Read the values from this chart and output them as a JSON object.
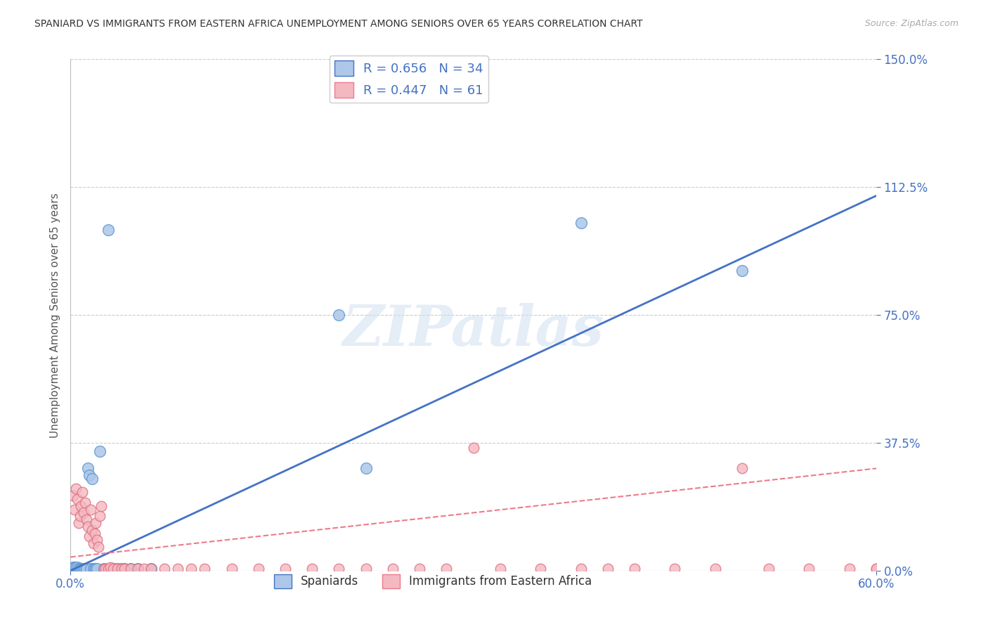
{
  "title": "SPANIARD VS IMMIGRANTS FROM EASTERN AFRICA UNEMPLOYMENT AMONG SENIORS OVER 65 YEARS CORRELATION CHART",
  "source": "Source: ZipAtlas.com",
  "ylabel": "Unemployment Among Seniors over 65 years",
  "xlim": [
    0.0,
    0.6
  ],
  "ylim": [
    0.0,
    1.5
  ],
  "ytick_values": [
    0.0,
    0.375,
    0.75,
    1.125,
    1.5
  ],
  "ytick_labels": [
    "0.0%",
    "37.5%",
    "75.0%",
    "112.5%",
    "150.0%"
  ],
  "xtick_values": [
    0.0,
    0.6
  ],
  "xtick_labels": [
    "0.0%",
    "60.0%"
  ],
  "background_color": "#ffffff",
  "watermark": "ZIPatlas",
  "legend_box_color_blue": "#aec6e8",
  "legend_box_color_pink": "#f4b8c1",
  "legend_line_color_blue": "#4472c4",
  "legend_line_color_pink": "#ee7a8a",
  "R_blue": 0.656,
  "N_blue": 34,
  "R_pink": 0.447,
  "N_pink": 61,
  "blue_scatter_x": [
    0.002,
    0.003,
    0.004,
    0.005,
    0.006,
    0.007,
    0.008,
    0.009,
    0.01,
    0.011,
    0.012,
    0.013,
    0.014,
    0.015,
    0.016,
    0.017,
    0.018,
    0.019,
    0.02,
    0.022,
    0.025,
    0.028,
    0.03,
    0.032,
    0.035,
    0.038,
    0.04,
    0.045,
    0.05,
    0.06,
    0.2,
    0.22,
    0.38,
    0.5
  ],
  "blue_scatter_y": [
    0.01,
    0.01,
    0.01,
    0.01,
    0.005,
    0.005,
    0.005,
    0.005,
    0.005,
    0.005,
    0.005,
    0.3,
    0.28,
    0.005,
    0.27,
    0.005,
    0.005,
    0.005,
    0.005,
    0.35,
    0.005,
    1.0,
    0.005,
    0.005,
    0.005,
    0.005,
    0.005,
    0.005,
    0.005,
    0.005,
    0.75,
    0.3,
    1.02,
    0.88
  ],
  "pink_scatter_x": [
    0.002,
    0.003,
    0.004,
    0.005,
    0.006,
    0.007,
    0.008,
    0.009,
    0.01,
    0.011,
    0.012,
    0.013,
    0.014,
    0.015,
    0.016,
    0.017,
    0.018,
    0.019,
    0.02,
    0.021,
    0.022,
    0.023,
    0.025,
    0.026,
    0.028,
    0.03,
    0.032,
    0.035,
    0.038,
    0.04,
    0.045,
    0.05,
    0.055,
    0.06,
    0.07,
    0.08,
    0.09,
    0.1,
    0.12,
    0.14,
    0.16,
    0.18,
    0.2,
    0.22,
    0.24,
    0.26,
    0.28,
    0.3,
    0.32,
    0.35,
    0.38,
    0.4,
    0.42,
    0.45,
    0.48,
    0.5,
    0.52,
    0.55,
    0.58,
    0.6,
    0.6
  ],
  "pink_scatter_y": [
    0.22,
    0.18,
    0.24,
    0.21,
    0.14,
    0.16,
    0.19,
    0.23,
    0.17,
    0.2,
    0.15,
    0.13,
    0.1,
    0.18,
    0.12,
    0.08,
    0.11,
    0.14,
    0.09,
    0.07,
    0.16,
    0.19,
    0.005,
    0.005,
    0.005,
    0.01,
    0.005,
    0.005,
    0.005,
    0.005,
    0.005,
    0.005,
    0.005,
    0.005,
    0.005,
    0.005,
    0.005,
    0.005,
    0.005,
    0.005,
    0.005,
    0.005,
    0.005,
    0.005,
    0.005,
    0.005,
    0.005,
    0.36,
    0.005,
    0.005,
    0.005,
    0.005,
    0.005,
    0.005,
    0.005,
    0.3,
    0.005,
    0.005,
    0.005,
    0.005,
    0.005
  ],
  "blue_line_x": [
    0.0,
    0.6
  ],
  "blue_line_y": [
    0.0,
    1.1
  ],
  "pink_line_x": [
    0.0,
    0.6
  ],
  "pink_line_y": [
    0.04,
    0.3
  ],
  "grid_color": "#cccccc",
  "tick_color": "#4472c4",
  "scatter_blue_face": "#aec6e8",
  "scatter_blue_edge": "#5b9bd5",
  "scatter_pink_face": "#f4b8c1",
  "scatter_pink_edge": "#e07080"
}
